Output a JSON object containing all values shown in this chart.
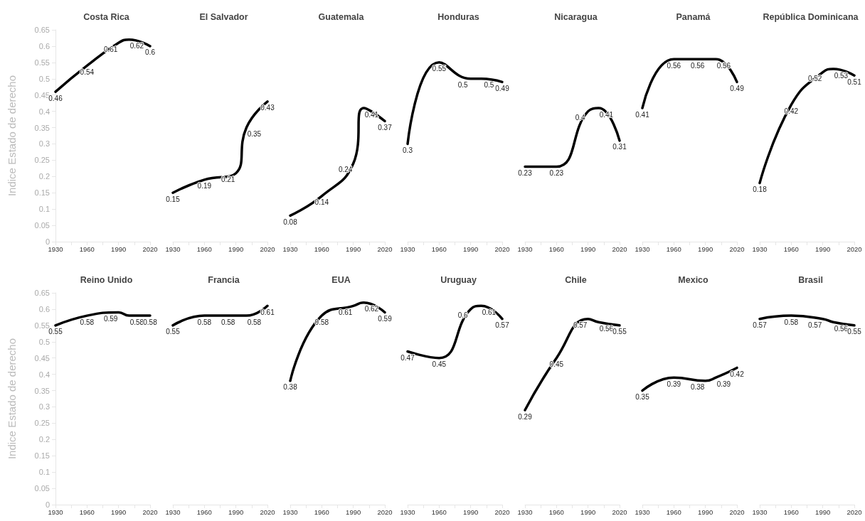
{
  "chart_data": [
    {
      "type": "line",
      "title": "Costa Rica",
      "ylabel": "Indice Estado de derecho",
      "x": [
        1930,
        1960,
        1990,
        2000,
        2020
      ],
      "series": [
        {
          "color": "#000000",
          "values": [
            0.46,
            0.54,
            0.61,
            0.62,
            0.6
          ]
        }
      ],
      "xlim": [
        1930,
        2020
      ],
      "ylim": [
        0,
        0.65
      ],
      "xticks": [
        1930,
        {
          "value": 1945,
          "label": null
        },
        1960,
        {
          "value": 1975,
          "label": null
        },
        1990,
        {
          "value": 2005,
          "label": null
        },
        2020
      ],
      "yticks": [
        0,
        0.05,
        0.1,
        0.15,
        0.2,
        0.25,
        0.3,
        0.35,
        0.4,
        0.45,
        0.5,
        0.55,
        0.6,
        0.65
      ],
      "data_labels": true,
      "marker": "none",
      "line_style": "solid"
    },
    {
      "type": "line",
      "title": "El Salvador",
      "x": [
        1930,
        1960,
        1990,
        2000,
        2020
      ],
      "series": [
        {
          "color": "#000000",
          "values": [
            0.15,
            0.19,
            0.21,
            0.35,
            0.43
          ]
        }
      ],
      "xlim": [
        1930,
        2020
      ],
      "ylim": [
        0,
        0.65
      ],
      "xticks": [
        1930,
        {
          "value": 1945,
          "label": null
        },
        1960,
        {
          "value": 1975,
          "label": null
        },
        1990,
        {
          "value": 2005,
          "label": null
        },
        2020
      ],
      "tick_labels": "x",
      "data_labels": true,
      "marker": "none",
      "line_style": "solid"
    },
    {
      "type": "line",
      "title": "Guatemala",
      "x": [
        1930,
        1960,
        1990,
        2000,
        2020
      ],
      "series": [
        {
          "color": "#000000",
          "values": [
            0.08,
            0.14,
            0.24,
            0.41,
            0.37
          ]
        }
      ],
      "xlim": [
        1930,
        2020
      ],
      "ylim": [
        0,
        0.65
      ],
      "xticks": [
        1930,
        {
          "value": 1945,
          "label": null
        },
        1960,
        {
          "value": 1975,
          "label": null
        },
        1990,
        {
          "value": 2005,
          "label": null
        },
        2020
      ],
      "tick_labels": "x",
      "data_labels": true,
      "marker": "none",
      "line_style": "solid"
    },
    {
      "type": "line",
      "title": "Honduras",
      "x": [
        1930,
        1960,
        1990,
        2000,
        2020
      ],
      "series": [
        {
          "color": "#000000",
          "values": [
            0.3,
            0.55,
            0.5,
            0.5,
            0.49
          ]
        }
      ],
      "xlim": [
        1930,
        2020
      ],
      "ylim": [
        0,
        0.65
      ],
      "xticks": [
        1930,
        {
          "value": 1945,
          "label": null
        },
        1960,
        {
          "value": 1975,
          "label": null
        },
        1990,
        {
          "value": 2005,
          "label": null
        },
        2020
      ],
      "tick_labels": "x",
      "data_labels": true,
      "marker": "none",
      "line_style": "solid"
    },
    {
      "type": "line",
      "title": "Nicaragua",
      "x": [
        1930,
        1960,
        1990,
        2000,
        2020
      ],
      "series": [
        {
          "color": "#000000",
          "values": [
            0.23,
            0.23,
            0.4,
            0.41,
            0.31
          ]
        }
      ],
      "xlim": [
        1930,
        2020
      ],
      "ylim": [
        0,
        0.65
      ],
      "xticks": [
        1930,
        {
          "value": 1945,
          "label": null
        },
        1960,
        {
          "value": 1975,
          "label": null
        },
        1990,
        {
          "value": 2005,
          "label": null
        },
        2020
      ],
      "tick_labels": "x",
      "data_labels": true,
      "marker": "none",
      "line_style": "solid"
    },
    {
      "type": "line",
      "title": "Panamá",
      "x": [
        1930,
        1960,
        1990,
        2000,
        2020
      ],
      "series": [
        {
          "color": "#000000",
          "values": [
            0.41,
            0.56,
            0.56,
            0.56,
            0.49
          ]
        }
      ],
      "xlim": [
        1930,
        2020
      ],
      "ylim": [
        0,
        0.65
      ],
      "xticks": [
        1930,
        {
          "value": 1945,
          "label": null
        },
        1960,
        {
          "value": 1975,
          "label": null
        },
        1990,
        {
          "value": 2005,
          "label": null
        },
        2020
      ],
      "tick_labels": "x",
      "data_labels": true,
      "marker": "none",
      "line_style": "solid"
    },
    {
      "type": "line",
      "title": "República Dominicana",
      "x": [
        1930,
        1960,
        1990,
        2000,
        2020
      ],
      "series": [
        {
          "color": "#000000",
          "values": [
            0.18,
            0.42,
            0.52,
            0.53,
            0.51
          ]
        }
      ],
      "xlim": [
        1930,
        2020
      ],
      "ylim": [
        0,
        0.65
      ],
      "xticks": [
        1930,
        {
          "value": 1945,
          "label": null
        },
        1960,
        {
          "value": 1975,
          "label": null
        },
        1990,
        {
          "value": 2005,
          "label": null
        },
        2020
      ],
      "tick_labels": "x",
      "data_labels": true,
      "marker": "none",
      "line_style": "solid"
    },
    {
      "type": "line",
      "title": "Reino Unido",
      "ylabel": "Indice Estado de derecho",
      "x": [
        1930,
        1960,
        1990,
        2000,
        2020
      ],
      "series": [
        {
          "color": "#000000",
          "values": [
            0.55,
            0.58,
            0.59,
            0.58,
            0.58
          ]
        }
      ],
      "xlim": [
        1930,
        2020
      ],
      "ylim": [
        0,
        0.65
      ],
      "xticks": [
        1930,
        {
          "value": 1945,
          "label": null
        },
        1960,
        {
          "value": 1975,
          "label": null
        },
        1990,
        {
          "value": 2005,
          "label": null
        },
        2020
      ],
      "yticks": [
        0,
        0.05,
        0.1,
        0.15,
        0.2,
        0.25,
        0.3,
        0.35,
        0.4,
        0.45,
        0.5,
        0.55,
        0.6,
        0.65
      ],
      "data_labels": true,
      "marker": "none",
      "line_style": "solid"
    },
    {
      "type": "line",
      "title": "Francia",
      "x": [
        1930,
        1960,
        1990,
        2000,
        2020
      ],
      "series": [
        {
          "color": "#000000",
          "values": [
            0.55,
            0.58,
            0.58,
            0.58,
            0.61
          ]
        }
      ],
      "xlim": [
        1930,
        2020
      ],
      "ylim": [
        0,
        0.65
      ],
      "xticks": [
        1930,
        {
          "value": 1945,
          "label": null
        },
        1960,
        {
          "value": 1975,
          "label": null
        },
        1990,
        {
          "value": 2005,
          "label": null
        },
        2020
      ],
      "tick_labels": "x",
      "data_labels": true,
      "marker": "none",
      "line_style": "solid"
    },
    {
      "type": "line",
      "title": "EUA",
      "x": [
        1930,
        1960,
        1990,
        2000,
        2020
      ],
      "series": [
        {
          "color": "#000000",
          "values": [
            0.38,
            0.58,
            0.61,
            0.62,
            0.59
          ]
        }
      ],
      "xlim": [
        1930,
        2020
      ],
      "ylim": [
        0,
        0.65
      ],
      "xticks": [
        1930,
        {
          "value": 1945,
          "label": null
        },
        1960,
        {
          "value": 1975,
          "label": null
        },
        1990,
        {
          "value": 2005,
          "label": null
        },
        2020
      ],
      "tick_labels": "x",
      "data_labels": true,
      "marker": "none",
      "line_style": "solid"
    },
    {
      "type": "line",
      "title": "Uruguay",
      "x": [
        1930,
        1960,
        1990,
        2000,
        2020
      ],
      "series": [
        {
          "color": "#000000",
          "values": [
            0.47,
            0.45,
            0.6,
            0.61,
            0.57
          ]
        }
      ],
      "xlim": [
        1930,
        2020
      ],
      "ylim": [
        0,
        0.65
      ],
      "xticks": [
        1930,
        {
          "value": 1945,
          "label": null
        },
        1960,
        {
          "value": 1975,
          "label": null
        },
        1990,
        {
          "value": 2005,
          "label": null
        },
        2020
      ],
      "tick_labels": "x",
      "data_labels": true,
      "marker": "none",
      "line_style": "solid"
    },
    {
      "type": "line",
      "title": "Chile",
      "x": [
        1930,
        1960,
        1990,
        2000,
        2020
      ],
      "series": [
        {
          "color": "#000000",
          "values": [
            0.29,
            0.45,
            0.57,
            0.56,
            0.55
          ]
        }
      ],
      "xlim": [
        1930,
        2020
      ],
      "ylim": [
        0,
        0.65
      ],
      "xticks": [
        1930,
        {
          "value": 1945,
          "label": null
        },
        1960,
        {
          "value": 1975,
          "label": null
        },
        1990,
        {
          "value": 2005,
          "label": null
        },
        2020
      ],
      "tick_labels": "x",
      "data_labels": true,
      "marker": "none",
      "line_style": "solid"
    },
    {
      "type": "line",
      "title": "Mexico",
      "x": [
        1930,
        1960,
        1990,
        2000,
        2020
      ],
      "series": [
        {
          "color": "#000000",
          "values": [
            0.35,
            0.39,
            0.38,
            0.39,
            0.42
          ]
        }
      ],
      "xlim": [
        1930,
        2020
      ],
      "ylim": [
        0,
        0.65
      ],
      "xticks": [
        1930,
        {
          "value": 1945,
          "label": null
        },
        1960,
        {
          "value": 1975,
          "label": null
        },
        1990,
        {
          "value": 2005,
          "label": null
        },
        2020
      ],
      "tick_labels": "x",
      "data_labels": true,
      "marker": "none",
      "line_style": "solid"
    },
    {
      "type": "line",
      "title": "Brasil",
      "x": [
        1930,
        1960,
        1990,
        2000,
        2020
      ],
      "series": [
        {
          "color": "#000000",
          "values": [
            0.57,
            0.58,
            0.57,
            0.56,
            0.55
          ]
        }
      ],
      "xlim": [
        1930,
        2020
      ],
      "ylim": [
        0,
        0.65
      ],
      "xticks": [
        1930,
        {
          "value": 1945,
          "label": null
        },
        1960,
        {
          "value": 1975,
          "label": null
        },
        1990,
        {
          "value": 2005,
          "label": null
        },
        2020
      ],
      "tick_labels": "x",
      "data_labels": true,
      "marker": "none",
      "line_style": "solid"
    }
  ]
}
